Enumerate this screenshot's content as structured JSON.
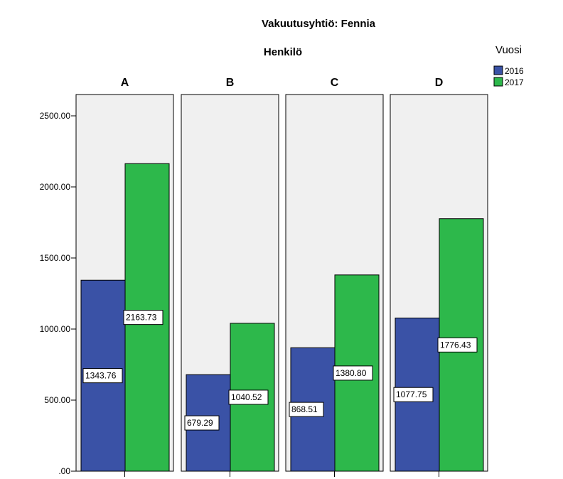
{
  "chart_data": {
    "type": "bar",
    "title": "Vakuutusyhtiö: Fennia",
    "subtitle": "Henkilö",
    "panels": [
      "A",
      "B",
      "C",
      "D"
    ],
    "legend_title": "Vuosi",
    "legend_position": "top-right",
    "series": [
      {
        "name": "2016",
        "color": "#3a52a6",
        "values": [
          1343.76,
          679.29,
          868.51,
          1077.75
        ]
      },
      {
        "name": "2017",
        "color": "#2db84b",
        "values": [
          2163.73,
          1040.52,
          1380.8,
          1776.43
        ]
      }
    ],
    "value_labels": [
      [
        "1343.76",
        "679.29",
        "868.51",
        "1077.75"
      ],
      [
        "2163.73",
        "1040.52",
        "1380.80",
        "1776.43"
      ]
    ],
    "y_ticks": [
      ".00",
      "500.00",
      "1000.00",
      "1500.00",
      "2000.00",
      "2500.00"
    ],
    "y_tick_values": [
      0,
      500,
      1000,
      1500,
      2000,
      2500
    ],
    "ylim": [
      0,
      2500
    ],
    "panel_background": "#f0f0f0",
    "grid": false
  }
}
